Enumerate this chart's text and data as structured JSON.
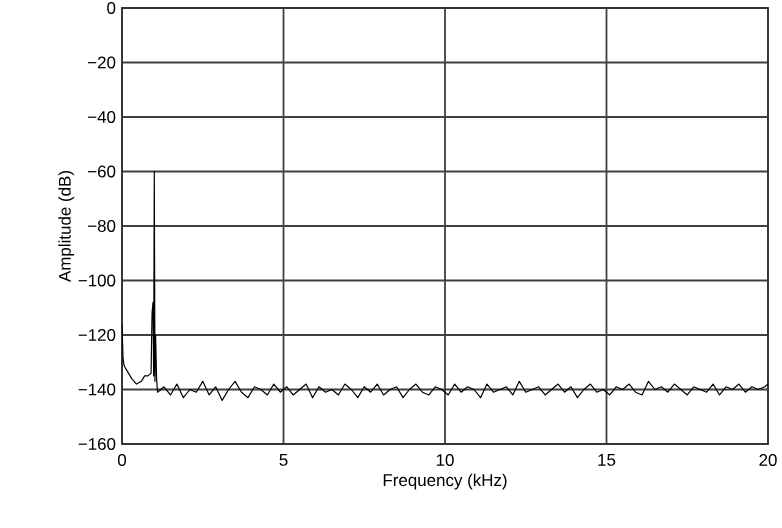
{
  "chart_data": {
    "type": "line",
    "xlabel": "Frequency (kHz)",
    "ylabel": "Amplitude (dB)",
    "xlim": [
      0,
      20
    ],
    "ylim": [
      -160,
      0
    ],
    "xticks": [
      0,
      5,
      10,
      15,
      20
    ],
    "yticks": [
      0,
      {
        "value": -20,
        "label": "−20"
      },
      {
        "value": -40,
        "label": "−40"
      },
      {
        "value": -60,
        "label": "−60"
      },
      {
        "value": -80,
        "label": "−80"
      },
      {
        "value": -100,
        "label": "−100"
      },
      {
        "value": -120,
        "label": "−120"
      },
      {
        "value": -140,
        "label": "−140"
      },
      {
        "value": -160,
        "label": "−160"
      }
    ],
    "grid": true,
    "marker": "none",
    "line_style": "solid",
    "series": [
      {
        "color": "#000000",
        "x": [
          0,
          0.03,
          0.06,
          0.1,
          0.2,
          0.3,
          0.45,
          0.6,
          0.7,
          0.8,
          0.9,
          0.93,
          0.96,
          0.98,
          1.0,
          1.02,
          1.04,
          1.07,
          1.1,
          1.3,
          1.5,
          1.7,
          1.9,
          2.1,
          2.3,
          2.5,
          2.7,
          2.9,
          3.1,
          3.3,
          3.5,
          3.7,
          3.9,
          4.1,
          4.3,
          4.5,
          4.7,
          4.9,
          5.1,
          5.3,
          5.5,
          5.7,
          5.9,
          6.1,
          6.3,
          6.5,
          6.7,
          6.9,
          7.1,
          7.3,
          7.5,
          7.7,
          7.9,
          8.1,
          8.3,
          8.5,
          8.7,
          8.9,
          9.1,
          9.3,
          9.5,
          9.7,
          9.9,
          10.1,
          10.3,
          10.5,
          10.7,
          10.9,
          11.1,
          11.3,
          11.5,
          11.7,
          11.9,
          12.1,
          12.3,
          12.5,
          12.7,
          12.9,
          13.1,
          13.3,
          13.5,
          13.7,
          13.9,
          14.1,
          14.3,
          14.5,
          14.7,
          14.9,
          15.1,
          15.3,
          15.5,
          15.7,
          15.9,
          16.1,
          16.3,
          16.5,
          16.7,
          16.9,
          17.1,
          17.3,
          17.5,
          17.7,
          17.9,
          18.1,
          18.3,
          18.5,
          18.7,
          18.9,
          19.1,
          19.3,
          19.5,
          19.7,
          19.9,
          20
        ],
        "values": [
          -116,
          -128,
          -131,
          -132,
          -134,
          -136,
          -138,
          -137,
          -135,
          -135,
          -134,
          -112,
          -108,
          -135,
          -60,
          -137,
          -120,
          -136,
          -141,
          -139,
          -142,
          -138,
          -143,
          -140,
          -141,
          -137,
          -142,
          -139,
          -144,
          -140,
          -137,
          -141,
          -143,
          -139,
          -140,
          -142,
          -138,
          -141,
          -139,
          -142,
          -140,
          -138,
          -143,
          -139,
          -141,
          -140,
          -142,
          -138,
          -140,
          -143,
          -139,
          -141,
          -138,
          -142,
          -140,
          -139,
          -143,
          -140,
          -138,
          -141,
          -142,
          -139,
          -140,
          -142,
          -138,
          -141,
          -139,
          -140,
          -143,
          -138,
          -141,
          -140,
          -139,
          -142,
          -137,
          -141,
          -140,
          -139,
          -142,
          -140,
          -138,
          -141,
          -139,
          -143,
          -140,
          -138,
          -141,
          -140,
          -142,
          -139,
          -140,
          -138,
          -141,
          -142,
          -137,
          -140,
          -139,
          -141,
          -138,
          -140,
          -142,
          -139,
          -140,
          -141,
          -138,
          -142,
          -139,
          -140,
          -138,
          -141,
          -139,
          -140,
          -139,
          -138
        ]
      }
    ]
  }
}
